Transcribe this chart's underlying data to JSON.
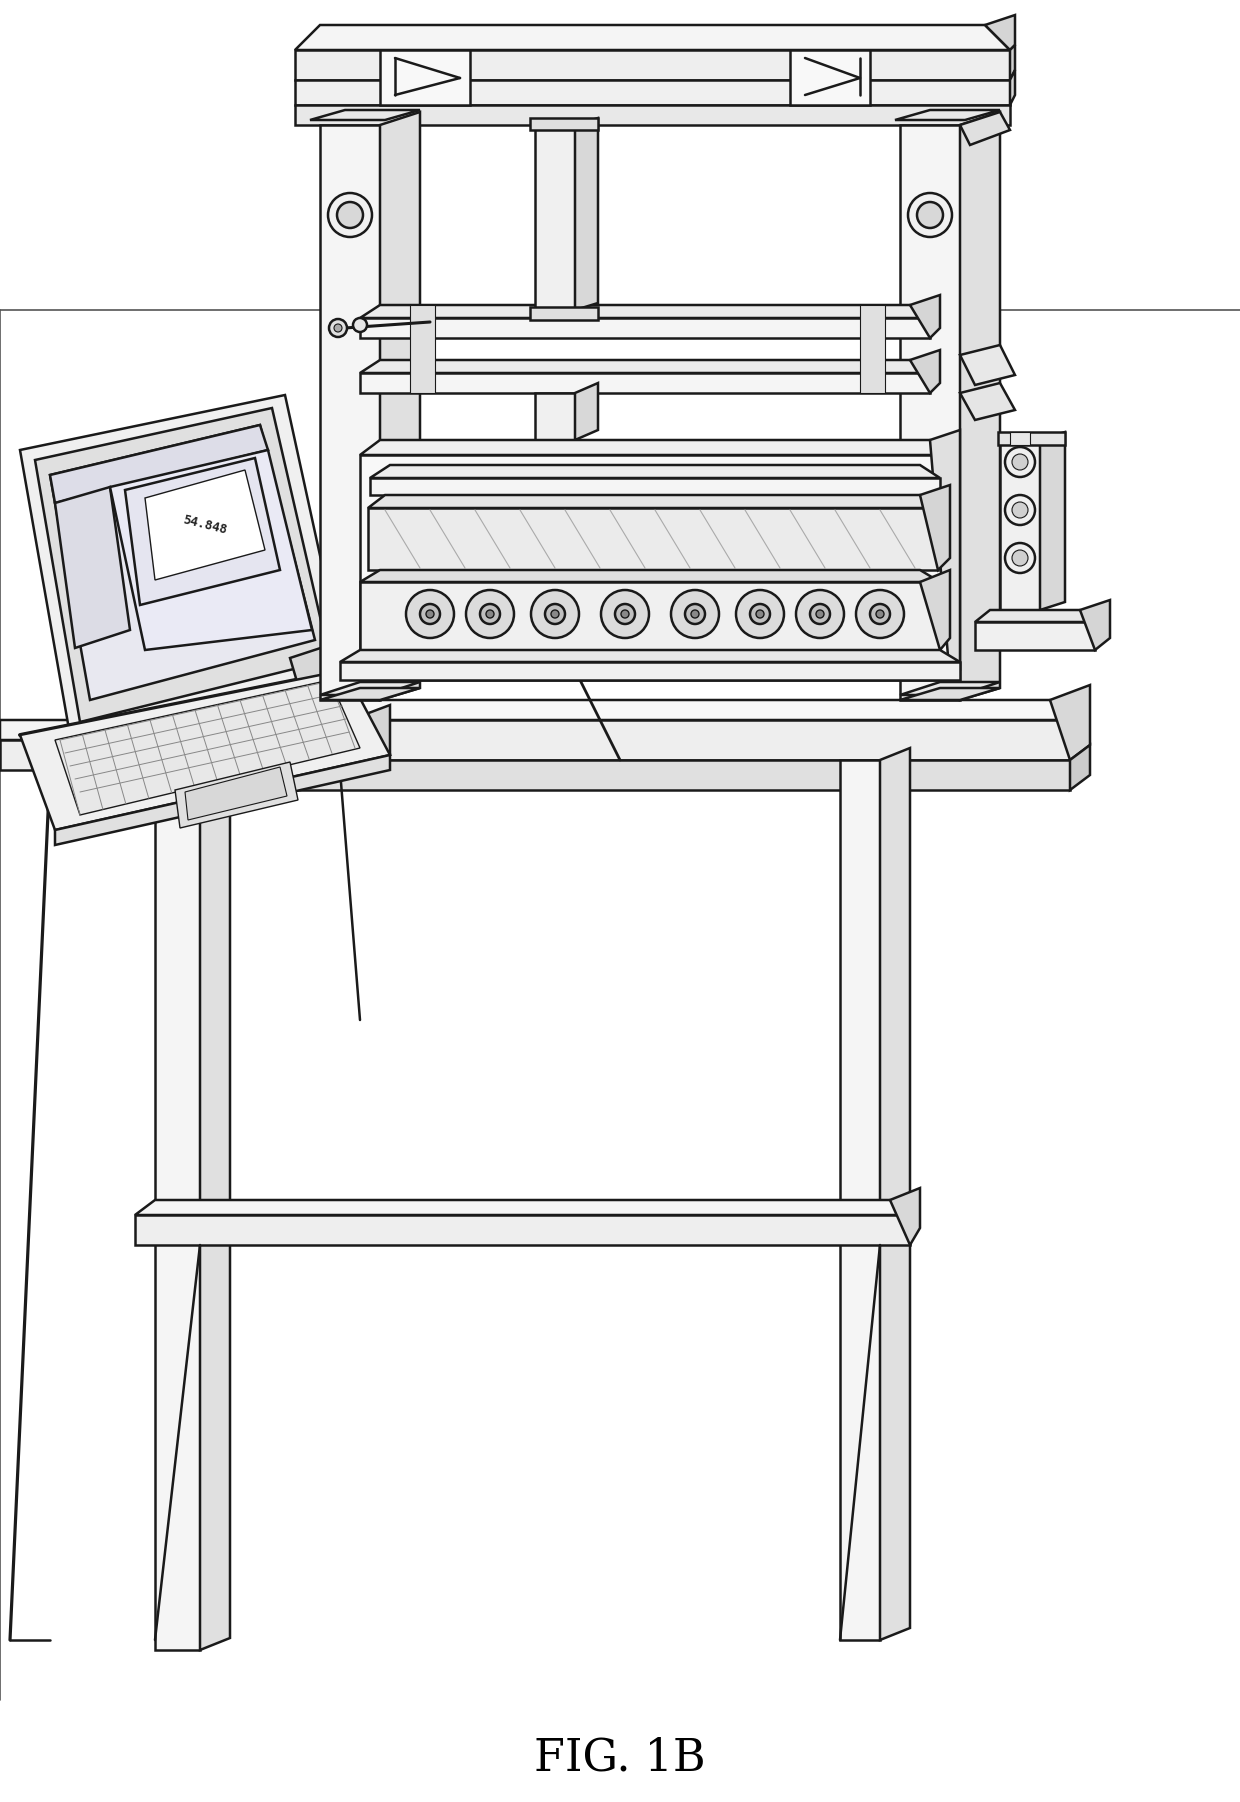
{
  "caption": "FIG. 1B",
  "caption_fontsize": 32,
  "caption_font": "serif",
  "bg_color": "#ffffff",
  "line_color": "#1a1a1a",
  "lw": 1.8,
  "fig_width": 12.4,
  "fig_height": 18.02,
  "dpi": 100
}
